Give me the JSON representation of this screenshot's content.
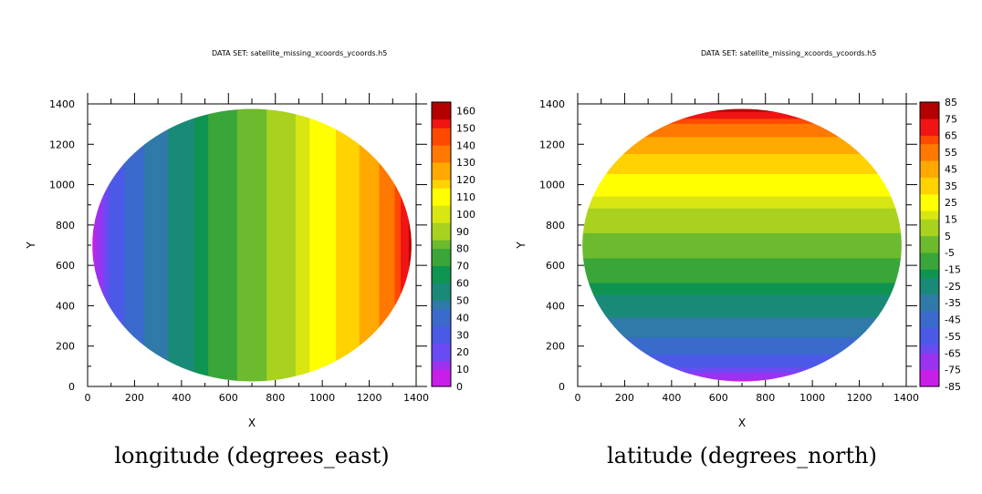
{
  "chart_data": [
    {
      "type": "contour",
      "dataset_label": "DATA SET: satellite_missing_xcoords_ycoords.h5",
      "title": "longitude (degrees_east)",
      "variable": "longitude",
      "orientation": "vertical-bands",
      "xlabel": "X",
      "ylabel": "Y",
      "xlim": [
        0,
        1400
      ],
      "ylim": [
        0,
        1400
      ],
      "x_ticks": [
        "0",
        "200",
        "400",
        "600",
        "800",
        "1000",
        "1200",
        "1400"
      ],
      "y_ticks": [
        "0",
        "200",
        "400",
        "600",
        "800",
        "1000",
        "1200",
        "1400"
      ],
      "disk": {
        "center_x": 700,
        "center_y": 700,
        "radius_x": 680,
        "radius_y": 675
      },
      "value_range": [
        0,
        165
      ],
      "colorbar_levels": [
        "0",
        "5",
        "10",
        "15",
        "20",
        "25",
        "30",
        "35",
        "40",
        "45",
        "50",
        "55",
        "60",
        "65",
        "70",
        "75",
        "80",
        "85",
        "90",
        "95",
        "100",
        "105",
        "110",
        "115",
        "120",
        "125",
        "130",
        "135",
        "140",
        "145",
        "150",
        "155",
        "160",
        "165"
      ],
      "colorbar_tick_labels": [
        "0",
        "10",
        "20",
        "30",
        "40",
        "50",
        "60",
        "70",
        "80",
        "90",
        "100",
        "110",
        "120",
        "130",
        "140",
        "150",
        "160"
      ]
    },
    {
      "type": "contour",
      "dataset_label": "DATA SET: satellite_missing_xcoords_ycoords.h5",
      "title": "latitude (degrees_north)",
      "variable": "latitude",
      "orientation": "horizontal-bands",
      "xlabel": "X",
      "ylabel": "Y",
      "xlim": [
        0,
        1400
      ],
      "ylim": [
        0,
        1400
      ],
      "x_ticks": [
        "0",
        "200",
        "400",
        "600",
        "800",
        "1000",
        "1200",
        "1400"
      ],
      "y_ticks": [
        "0",
        "200",
        "400",
        "600",
        "800",
        "1000",
        "1200",
        "1400"
      ],
      "disk": {
        "center_x": 700,
        "center_y": 700,
        "radius_x": 680,
        "radius_y": 675
      },
      "value_range": [
        -85,
        85
      ],
      "colorbar_levels": [
        "-85",
        "-80",
        "-75",
        "-70",
        "-65",
        "-60",
        "-55",
        "-50",
        "-45",
        "-40",
        "-35",
        "-30",
        "-25",
        "-20",
        "-15",
        "-10",
        "-5",
        "0",
        "5",
        "10",
        "15",
        "20",
        "25",
        "30",
        "35",
        "40",
        "45",
        "50",
        "55",
        "60",
        "65",
        "70",
        "75",
        "80",
        "85"
      ],
      "colorbar_tick_labels": [
        "-85",
        "-75",
        "-65",
        "-55",
        "-45",
        "-35",
        "-25",
        "-15",
        "-5",
        "5",
        "15",
        "25",
        "35",
        "45",
        "55",
        "65",
        "75",
        "85"
      ]
    }
  ],
  "palette": [
    "#c81ee8",
    "#9b32f0",
    "#6a4af2",
    "#4a5ae6",
    "#3a6acc",
    "#2f7aa8",
    "#1a8a78",
    "#0e9450",
    "#3aa63a",
    "#6cba2e",
    "#a8d21e",
    "#d8e612",
    "#ffff00",
    "#ffd200",
    "#ffa800",
    "#ff7800",
    "#ff4800",
    "#f01414",
    "#b40000"
  ]
}
